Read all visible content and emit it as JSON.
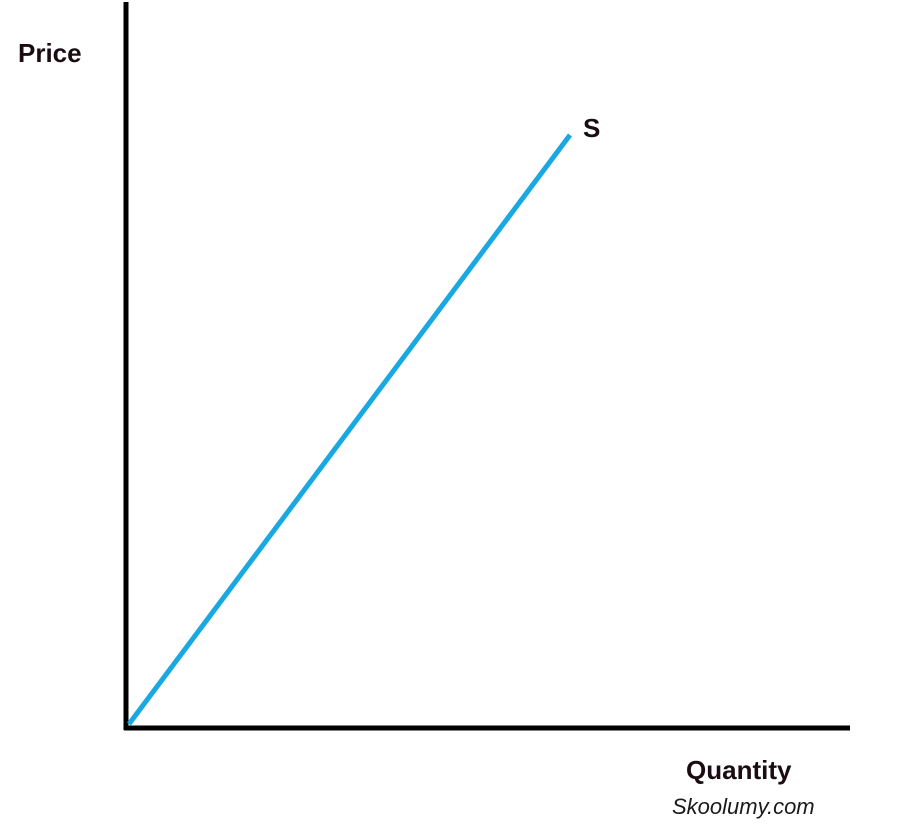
{
  "y_axis_label": "Price",
  "x_axis_label": "Quantity",
  "curve_label": "S",
  "watermark": "Skoolumy.com"
}
